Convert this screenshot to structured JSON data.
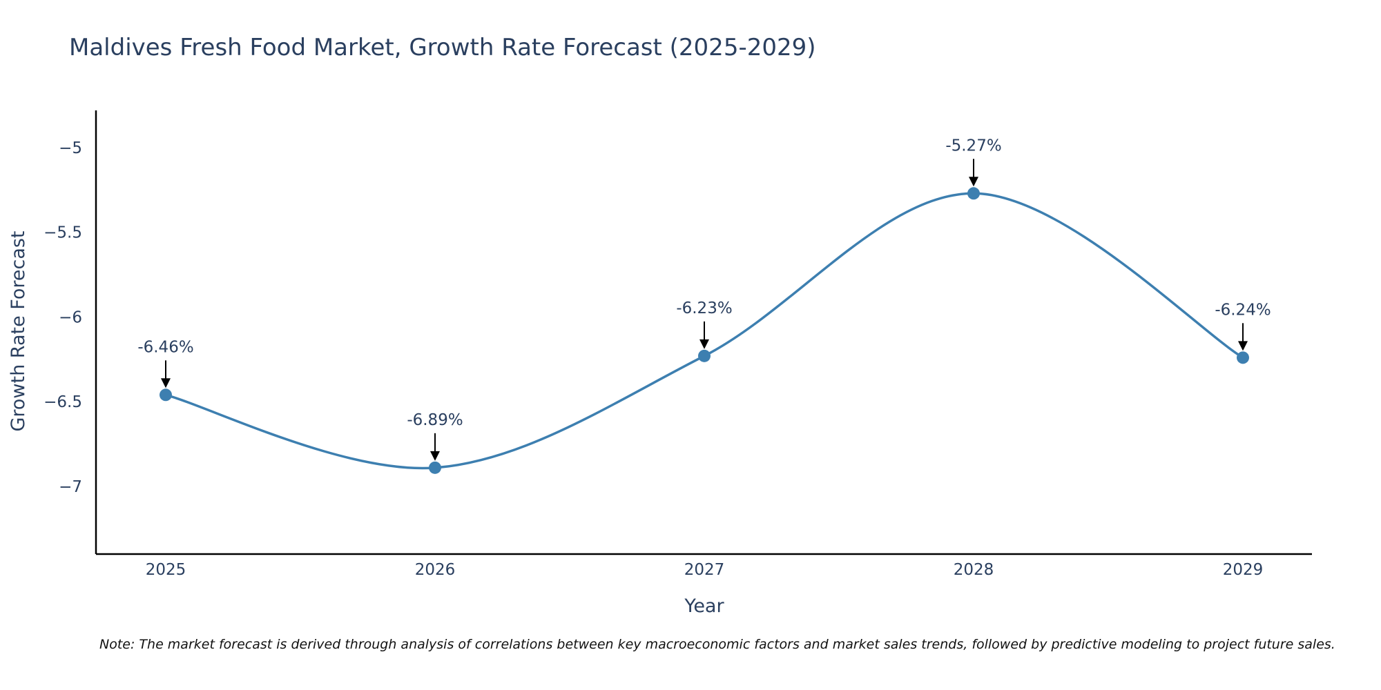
{
  "chart_data": {
    "type": "line",
    "title": "Maldives Fresh Food Market, Growth Rate Forecast (2025-2029)",
    "xlabel": "Year",
    "ylabel": "Growth Rate Forecast",
    "categories": [
      "2025",
      "2026",
      "2027",
      "2028",
      "2029"
    ],
    "values": [
      -6.46,
      -6.89,
      -6.23,
      -5.27,
      -6.24
    ],
    "data_labels": [
      "-6.46%",
      "-6.89%",
      "-6.23%",
      "-5.27%",
      "-6.24%"
    ],
    "y_ticks": [
      -5,
      -5.5,
      -6,
      -6.5,
      -7
    ],
    "y_tick_labels": [
      "−5",
      "−5.5",
      "−6",
      "−6.5",
      "−7"
    ],
    "ylim": [
      -7.4,
      -4.78
    ],
    "grid": false,
    "line_shape": "spline",
    "markers": true,
    "colors": {
      "line": "#3d7fb0",
      "marker": "#3d7fb0",
      "axis": "#000000",
      "arrow": "#000000"
    }
  },
  "note": "Note: The market forecast is derived through analysis of correlations between key macroeconomic factors and market sales trends, followed by predictive modeling to project future sales."
}
